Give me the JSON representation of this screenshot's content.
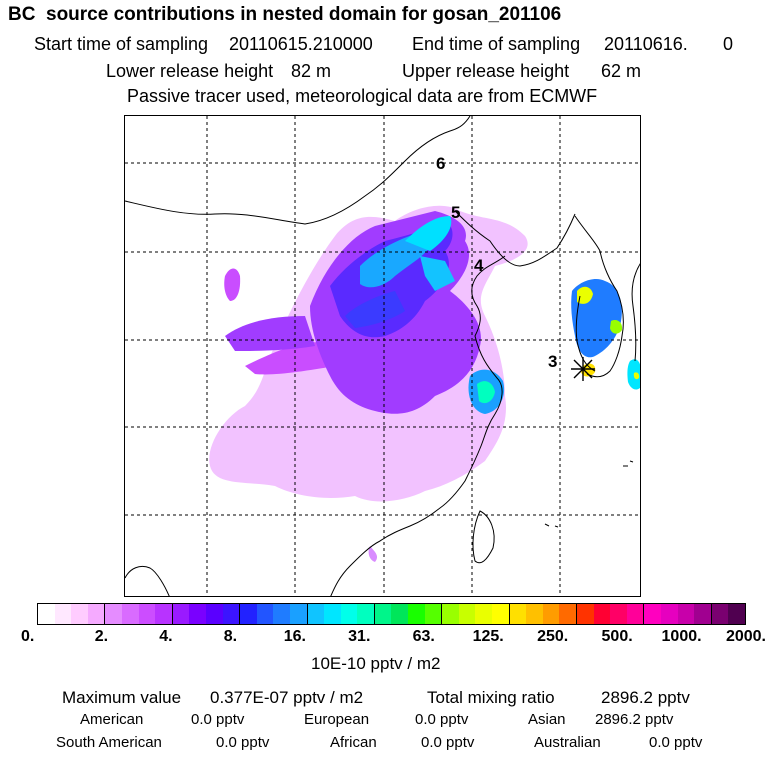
{
  "title": "BC  source contributions in nested domain for gosan_201106",
  "header": {
    "start_label": "Start time of sampling",
    "start_value": "20110615.210000",
    "end_label": "End time of sampling",
    "end_value": "20110616.",
    "end_suffix": "0",
    "lower_label": "Lower release height",
    "lower_value": "82 m",
    "upper_label": "Upper release height",
    "upper_value": "62 m",
    "tracer_note": "Passive tracer used, meteorological data are from ECMWF"
  },
  "map": {
    "release_labels": [
      "6",
      "5",
      "4",
      "3"
    ],
    "receptor_icon": "asterisk-receptor-marker"
  },
  "colorbar": {
    "ticks": [
      "0.",
      "2.",
      "4.",
      "8.",
      "16.",
      "31.",
      "63.",
      "125.",
      "250.",
      "500.",
      "1000.",
      "2000."
    ],
    "colors": [
      "#ffffff",
      "#ffe8ff",
      "#ffccff",
      "#f5aaff",
      "#e58cff",
      "#d96bff",
      "#cc4dff",
      "#b833ff",
      "#9a1aff",
      "#7a00ff",
      "#5a00ff",
      "#3c14ff",
      "#2222ff",
      "#2255ff",
      "#1f7cff",
      "#1aa0ff",
      "#10c4ff",
      "#00e6ff",
      "#00ffea",
      "#00ffbf",
      "#00f58a",
      "#00e65a",
      "#19ff00",
      "#55ff00",
      "#99ff00",
      "#c8ff00",
      "#eaff00",
      "#ffff00",
      "#ffe000",
      "#ffc000",
      "#ff9c00",
      "#ff6a00",
      "#ff3300",
      "#ff0033",
      "#ff0066",
      "#ff0099",
      "#ff00bf",
      "#e600bf",
      "#c800aa",
      "#a00090",
      "#7a0070",
      "#500050"
    ],
    "unit": "10E-10 pptv / m2"
  },
  "stats": {
    "max_label": "Maximum value",
    "max_value": "0.377E-07 pptv / m2",
    "total_label": "Total mixing ratio",
    "total_value": "2896.2 pptv",
    "regions": [
      {
        "name": "American",
        "value": "0.0 pptv"
      },
      {
        "name": "European",
        "value": "0.0 pptv"
      },
      {
        "name": "Asian",
        "value": "2896.2 pptv"
      },
      {
        "name": "South American",
        "value": "0.0 pptv"
      },
      {
        "name": "African",
        "value": "0.0 pptv"
      },
      {
        "name": "Australian",
        "value": "0.0 pptv"
      }
    ]
  }
}
